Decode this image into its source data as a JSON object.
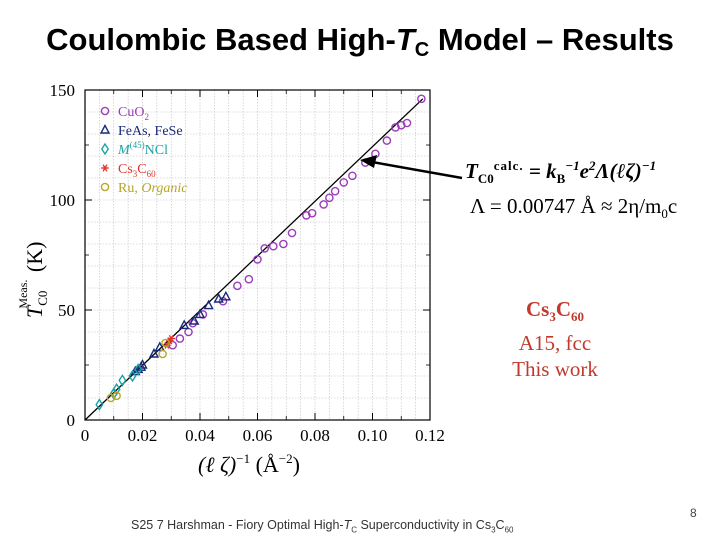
{
  "slide": {
    "title_main": "Coulombic Based High-",
    "title_T": "T",
    "title_sub": "C",
    "title_tail": " Model – Results",
    "page_number": "8",
    "footer": {
      "prefix": "S25  7  Harshman - Fiory  Optimal High-",
      "T": "T",
      "Tsub": "C",
      "mid": "  Superconductivity in Cs",
      "sub3": "3",
      "C": "C",
      "sub60": "60"
    }
  },
  "annotations": {
    "formula_line1": {
      "T": "T",
      "Tsub": "C0",
      "calc": "calc.",
      "eq": " = k",
      "kB_sub": "B",
      "inv1": "−1",
      "e": "e",
      "e_sup": "2",
      "tail": "Λ(ℓζ)",
      "tail_sup": "−1"
    },
    "formula_line2": {
      "text": "Λ = 0.00747 Å ≈ 2",
      "eta": "η",
      "slash": "/m",
      "m_sub": "0",
      "c": "c"
    },
    "note": {
      "line1_a": "Cs",
      "line1_sub3": "3",
      "line1_b": "C",
      "line1_sub60": "60",
      "line2": "A15, fcc",
      "line3": "This work"
    }
  },
  "colors": {
    "cuo2": "#9b3db8",
    "feas": "#1a2a7a",
    "mncl": "#1aa3a3",
    "cs3c60": "#e0352b",
    "ru": "#b8a52a",
    "note": "#c0392b"
  },
  "chart_data": {
    "type": "scatter",
    "xlabel_parts": [
      "(ℓ ζ)",
      "−1",
      "  (Å",
      "−2",
      ")"
    ],
    "ylabel_parts": [
      "T",
      "C0",
      "Meas.",
      " (K)"
    ],
    "xlim": [
      0,
      0.12
    ],
    "ylim": [
      0,
      150
    ],
    "xticks": [
      0,
      0.02,
      0.04,
      0.06,
      0.08,
      0.1,
      0.12
    ],
    "xtick_labels": [
      "0",
      "0.02",
      "0.04",
      "0.06",
      "0.08",
      "0.10",
      "0.12"
    ],
    "yticks": [
      0,
      50,
      100,
      150
    ],
    "ytick_labels": [
      "0",
      "50",
      "100",
      "150"
    ],
    "grid": true,
    "fit_line": {
      "x": [
        0,
        0.1175
      ],
      "y": [
        0,
        146
      ]
    },
    "legend_position": "top-left",
    "series": [
      {
        "name": "CuO2",
        "name_parts": [
          "CuO",
          "2",
          ""
        ],
        "color": "#9b3db8",
        "marker": "circle",
        "points": [
          [
            0.0305,
            34
          ],
          [
            0.033,
            37
          ],
          [
            0.036,
            40
          ],
          [
            0.0375,
            44
          ],
          [
            0.041,
            48
          ],
          [
            0.048,
            54
          ],
          [
            0.053,
            61
          ],
          [
            0.057,
            64
          ],
          [
            0.06,
            73
          ],
          [
            0.0625,
            78
          ],
          [
            0.0655,
            79
          ],
          [
            0.069,
            80
          ],
          [
            0.072,
            85
          ],
          [
            0.077,
            93
          ],
          [
            0.079,
            94
          ],
          [
            0.083,
            98
          ],
          [
            0.085,
            101
          ],
          [
            0.087,
            104
          ],
          [
            0.09,
            108
          ],
          [
            0.093,
            111
          ],
          [
            0.0975,
            117
          ],
          [
            0.101,
            121
          ],
          [
            0.105,
            127
          ],
          [
            0.108,
            133
          ],
          [
            0.11,
            134
          ],
          [
            0.112,
            135
          ],
          [
            0.117,
            146
          ]
        ]
      },
      {
        "name": "FeAs, FeSe",
        "name_parts": [
          "FeAs, FeSe",
          "",
          ""
        ],
        "color": "#1a2a7a",
        "marker": "triangle",
        "points": [
          [
            0.0175,
            22
          ],
          [
            0.0185,
            23
          ],
          [
            0.0195,
            24
          ],
          [
            0.02,
            25
          ],
          [
            0.024,
            30
          ],
          [
            0.026,
            33
          ],
          [
            0.0345,
            43
          ],
          [
            0.038,
            45
          ],
          [
            0.04,
            48
          ],
          [
            0.043,
            52
          ],
          [
            0.0465,
            55
          ],
          [
            0.049,
            56
          ]
        ]
      },
      {
        "name": "M(45)NCl",
        "name_parts": [
          "M",
          "(45)",
          "NCl"
        ],
        "color": "#1aa3a3",
        "marker": "diamond",
        "points": [
          [
            0.005,
            7
          ],
          [
            0.01,
            12
          ],
          [
            0.011,
            14
          ],
          [
            0.013,
            18
          ],
          [
            0.0165,
            20
          ],
          [
            0.0185,
            23
          ]
        ]
      },
      {
        "name": "Cs3C60",
        "name_parts": [
          "Cs",
          "3",
          "C",
          "60"
        ],
        "color": "#e0352b",
        "marker": "star",
        "points": [
          [
            0.0285,
            34
          ],
          [
            0.0295,
            36
          ],
          [
            0.03,
            37
          ]
        ]
      },
      {
        "name": "Ru, Organic",
        "name_parts": [
          "Ru, ",
          "Organic"
        ],
        "color": "#b8a52a",
        "marker": "circle",
        "points": [
          [
            0.009,
            10
          ],
          [
            0.011,
            11
          ],
          [
            0.027,
            30
          ],
          [
            0.028,
            35
          ]
        ]
      }
    ]
  }
}
